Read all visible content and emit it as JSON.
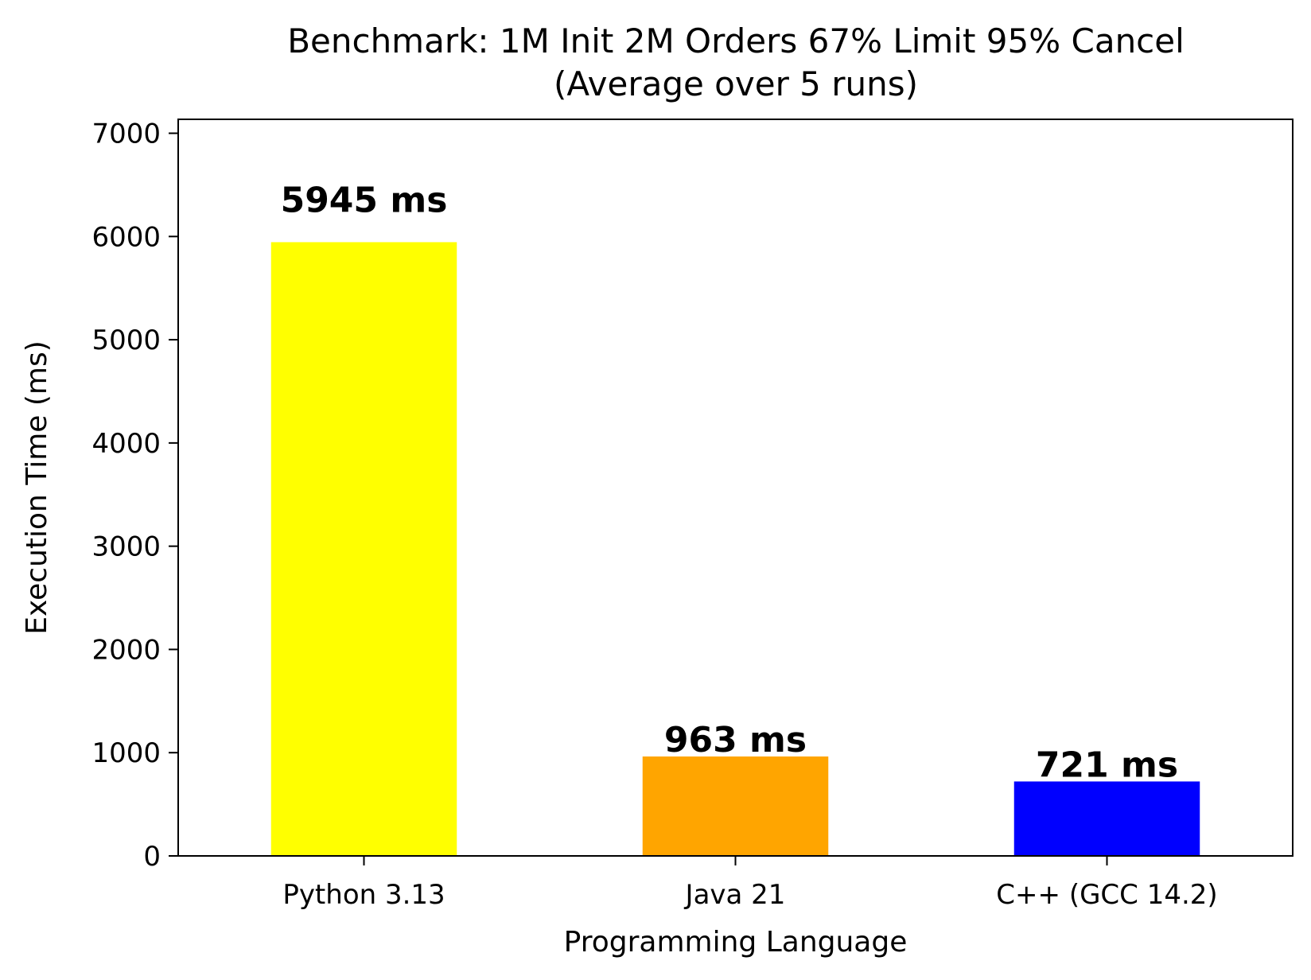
{
  "chart_data": {
    "type": "bar",
    "title": "Benchmark: 1M Init 2M Orders 67% Limit 95% Cancel",
    "subtitle": "(Average over 5 runs)",
    "xlabel": "Programming Language",
    "ylabel": "Execution Time (ms)",
    "categories": [
      "Python 3.13",
      "Java 21",
      "C++ (GCC 14.2)"
    ],
    "values": [
      5945,
      963,
      721
    ],
    "data_labels": [
      "5945 ms",
      "963 ms",
      "721 ms"
    ],
    "colors": [
      "#ffff00",
      "#ffa500",
      "#0000ff"
    ],
    "ylim": [
      0,
      7135
    ],
    "yticks": [
      0,
      1000,
      2000,
      3000,
      4000,
      5000,
      6000,
      7000
    ],
    "ytick_labels": [
      "0",
      "1000",
      "2000",
      "3000",
      "4000",
      "5000",
      "6000",
      "7000"
    ],
    "grid": false,
    "legend": "none"
  }
}
